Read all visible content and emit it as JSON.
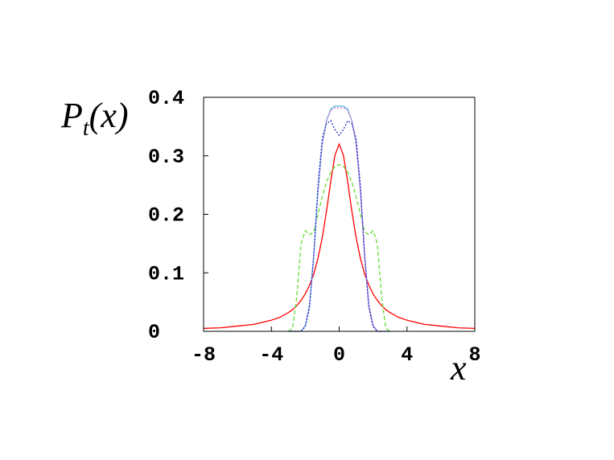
{
  "chart_data": {
    "type": "line",
    "ylabel": [
      "P",
      "t",
      "(x)"
    ],
    "xlabel": "x",
    "x": [
      -8,
      -7,
      -6,
      -5,
      -4,
      -3.5,
      -3,
      -2.75,
      -2.5,
      -2.25,
      -2,
      -1.75,
      -1.5,
      -1.25,
      -1,
      -0.75,
      -0.5,
      -0.25,
      0,
      0.25,
      0.5,
      0.75,
      1,
      1.25,
      1.5,
      1.75,
      2,
      2.25,
      2.5,
      2.75,
      3,
      3.5,
      4,
      5,
      6,
      7,
      8
    ],
    "series": [
      {
        "color": "#ff0000",
        "dash": "none",
        "values": [
          0.005,
          0.006,
          0.009,
          0.012,
          0.019,
          0.024,
          0.032,
          0.037,
          0.044,
          0.053,
          0.064,
          0.079,
          0.098,
          0.125,
          0.16,
          0.205,
          0.256,
          0.301,
          0.32,
          0.301,
          0.256,
          0.205,
          0.16,
          0.125,
          0.098,
          0.079,
          0.064,
          0.053,
          0.044,
          0.037,
          0.032,
          0.024,
          0.019,
          0.012,
          0.009,
          0.006,
          0.005
        ]
      },
      {
        "color": "#66dd33",
        "dash": "5 3",
        "values": [
          null,
          null,
          null,
          null,
          null,
          null,
          0,
          0.005,
          0.06,
          0.15,
          0.172,
          0.165,
          0.17,
          0.2,
          0.23,
          0.255,
          0.272,
          0.282,
          0.285,
          0.282,
          0.272,
          0.255,
          0.23,
          0.2,
          0.17,
          0.165,
          0.172,
          0.15,
          0.06,
          0.005,
          0,
          null,
          null,
          null,
          null,
          null,
          null
        ]
      },
      {
        "color": "#66bbdd",
        "dash": "none",
        "values": [
          null,
          null,
          null,
          null,
          null,
          null,
          0,
          0,
          0,
          0,
          0.01,
          0.045,
          0.13,
          0.24,
          0.32,
          0.36,
          0.38,
          0.385,
          0.385,
          0.385,
          0.38,
          0.36,
          0.32,
          0.24,
          0.13,
          0.045,
          0.01,
          0,
          0,
          0,
          0,
          null,
          null,
          null,
          null,
          null,
          null
        ]
      },
      {
        "color": "#cc66cc",
        "dash": "2 2",
        "values": [
          null,
          null,
          null,
          null,
          null,
          null,
          0,
          0,
          0,
          0,
          0.01,
          0.045,
          0.13,
          0.24,
          0.32,
          0.36,
          0.378,
          0.382,
          0.382,
          0.382,
          0.378,
          0.36,
          0.32,
          0.24,
          0.13,
          0.045,
          0.01,
          0,
          0,
          0,
          0,
          null,
          null,
          null,
          null,
          null,
          null
        ]
      },
      {
        "color": "#2233cc",
        "dash": "2 2",
        "values": [
          null,
          null,
          null,
          null,
          null,
          null,
          0,
          0,
          0,
          0,
          0.008,
          0.04,
          0.13,
          0.25,
          0.33,
          0.355,
          0.36,
          0.345,
          0.335,
          0.345,
          0.36,
          0.355,
          0.33,
          0.25,
          0.13,
          0.04,
          0.008,
          0,
          0,
          0,
          0,
          null,
          null,
          null,
          null,
          null,
          null
        ]
      }
    ],
    "xlim": [
      -8,
      8
    ],
    "ylim": [
      0,
      0.4
    ],
    "xticks": [
      -8,
      -4,
      0,
      4,
      8
    ],
    "yticks": [
      0,
      0.1,
      0.2,
      0.3,
      0.4
    ],
    "grid": false
  }
}
